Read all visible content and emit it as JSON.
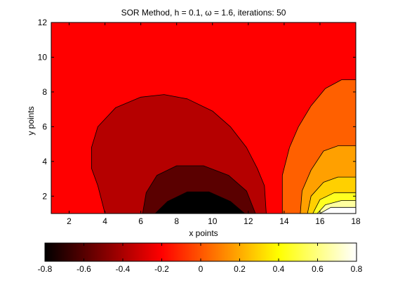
{
  "chart_data": {
    "type": "contour",
    "title": "SOR Method, h = 0.1, ω = 1.6, iterations: 50",
    "xlabel": "x points",
    "ylabel": "y points",
    "xlim": [
      1,
      18
    ],
    "ylim": [
      1,
      12
    ],
    "xticks": [
      2,
      4,
      6,
      8,
      10,
      12,
      14,
      16,
      18
    ],
    "yticks": [
      2,
      4,
      6,
      8,
      10,
      12
    ],
    "grid": false,
    "colormap": "hot",
    "colorbar": {
      "orientation": "horizontal",
      "placement": "bottom",
      "range": [
        -0.8,
        0.8
      ],
      "ticks": [
        -0.8,
        -0.6,
        -0.4,
        -0.2,
        0,
        0.2,
        0.4,
        0.6,
        0.8
      ]
    },
    "background_level": -0.2,
    "regions": [
      {
        "level": -0.43,
        "color": "#b50000",
        "points": [
          [
            4,
            1
          ],
          [
            3.6,
            2.6
          ],
          [
            3.25,
            3.6
          ],
          [
            3.25,
            4.8
          ],
          [
            3.6,
            6.0
          ],
          [
            4.6,
            7.1
          ],
          [
            6.0,
            7.7
          ],
          [
            7.3,
            7.85
          ],
          [
            8.6,
            7.6
          ],
          [
            10.0,
            6.9
          ],
          [
            11.0,
            6.0
          ],
          [
            11.9,
            4.8
          ],
          [
            12.5,
            3.6
          ],
          [
            12.9,
            2.6
          ],
          [
            13.0,
            1.0
          ]
        ]
      },
      {
        "level": -0.62,
        "color": "#5a0000",
        "points": [
          [
            6.1,
            1
          ],
          [
            6.3,
            2.2
          ],
          [
            6.9,
            3.2
          ],
          [
            8.0,
            3.75
          ],
          [
            9.5,
            3.75
          ],
          [
            10.9,
            3.2
          ],
          [
            11.9,
            2.3
          ],
          [
            12.4,
            1.0
          ]
        ]
      },
      {
        "level": -0.78,
        "color": "#000000",
        "points": [
          [
            6.8,
            1
          ],
          [
            7.5,
            1.7
          ],
          [
            8.6,
            2.25
          ],
          [
            9.8,
            2.25
          ],
          [
            11.0,
            1.7
          ],
          [
            11.8,
            1.0
          ]
        ]
      },
      {
        "level": 0.0,
        "color": "#ff6000",
        "points": [
          [
            13.9,
            1
          ],
          [
            13.9,
            3.2
          ],
          [
            14.3,
            4.8
          ],
          [
            14.8,
            6.0
          ],
          [
            15.5,
            7.2
          ],
          [
            16.3,
            8.2
          ],
          [
            17.2,
            8.7
          ],
          [
            18,
            8.7
          ],
          [
            18,
            1
          ]
        ]
      },
      {
        "level": 0.22,
        "color": "#ffa000",
        "points": [
          [
            14.9,
            1
          ],
          [
            15.0,
            2.3
          ],
          [
            15.5,
            3.5
          ],
          [
            16.2,
            4.6
          ],
          [
            17.0,
            4.9
          ],
          [
            18,
            4.9
          ],
          [
            18,
            1
          ]
        ]
      },
      {
        "level": 0.4,
        "color": "#ffd000",
        "points": [
          [
            15.3,
            1
          ],
          [
            15.5,
            2.0
          ],
          [
            16.2,
            2.8
          ],
          [
            17.0,
            3.1
          ],
          [
            18,
            3.1
          ],
          [
            18,
            1
          ]
        ]
      },
      {
        "level": 0.55,
        "color": "#ffff20",
        "points": [
          [
            15.6,
            1
          ],
          [
            16.0,
            1.8
          ],
          [
            16.8,
            2.2
          ],
          [
            18,
            2.2
          ],
          [
            18,
            1
          ]
        ]
      },
      {
        "level": 0.7,
        "color": "#ffffa0",
        "points": [
          [
            15.85,
            1
          ],
          [
            16.3,
            1.5
          ],
          [
            17.2,
            1.75
          ],
          [
            18,
            1.75
          ],
          [
            18,
            1
          ]
        ]
      },
      {
        "level": 0.8,
        "color": "#ffffff",
        "points": [
          [
            16.0,
            1
          ],
          [
            16.6,
            1.35
          ],
          [
            18,
            1.35
          ],
          [
            18,
            1
          ]
        ]
      }
    ]
  }
}
